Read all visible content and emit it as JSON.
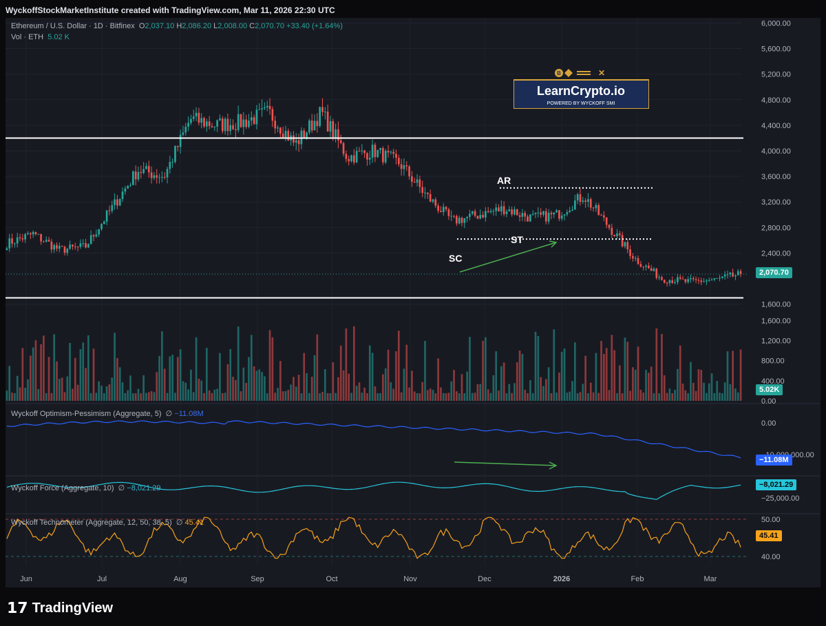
{
  "header": {
    "title": "WyckoffStockMarketInstitute created with TradingView.com, Mar 11, 2026 22:30 UTC"
  },
  "legend": {
    "symbol": "Ethereum / U.S. Dollar · 1D · Bitfinex",
    "o_label": "O",
    "o": "2,037.10",
    "h_label": "H",
    "h": "2,086.20",
    "l_label": "L",
    "l": "2,008.00",
    "c_label": "C",
    "c": "2,070.70",
    "change": "+33.40 (+1.64%)",
    "vol_label": "Vol · ETH",
    "vol": "5.02 K"
  },
  "indicators": {
    "op": {
      "label": "Wyckoff Optimism-Pessimism (Aggregate, 5)",
      "symbol": "∅",
      "value": "−11.08M"
    },
    "force": {
      "label": "Wyckoff Force (Aggregate, 10)",
      "symbol": "∅",
      "value": "−8,021.29"
    },
    "tech": {
      "label": "Wyckoff Technometer (Aggregate, 12, 50, 38, 5)",
      "symbol": "∅",
      "value": "45.41"
    }
  },
  "price_tags": {
    "price": "2,070.70",
    "vol": "5.02K",
    "op": "−11.08M",
    "force": "−8,021.29",
    "tech": "45.41"
  },
  "logo": {
    "title": "LearnCrypto.io",
    "subtitle": "POWERED BY WYCKOFF SMI"
  },
  "annotations": {
    "ar": "AR",
    "st": "ST",
    "sc": "SC"
  },
  "footer": {
    "brand": "TradingView"
  },
  "colors": {
    "up": "#26a69a",
    "down": "#ef5350",
    "op_line": "#2962ff",
    "force_line": "#26c6da",
    "tech_line": "#f7a21b"
  },
  "chart_data": [
    {
      "type": "candlestick",
      "title": "Ethereum / U.S. Dollar · 1D · Bitfinex",
      "price_axis": [
        "6,000.00",
        "5,600.00",
        "5,200.00",
        "4,800.00",
        "4,400.00",
        "4,000.00",
        "3,600.00",
        "3,200.00",
        "2,800.00",
        "2,400.00",
        "1,600.00"
      ],
      "price_axis_values": [
        6000,
        5600,
        5200,
        4800,
        4400,
        4000,
        3600,
        3200,
        2800,
        2400,
        1600
      ],
      "x_ticks": [
        "Jun",
        "Jul",
        "Aug",
        "Sep",
        "Oct",
        "Nov",
        "Dec",
        "2026",
        "Feb",
        "Mar"
      ],
      "ylim": [
        1500,
        6080
      ],
      "key_points": [
        {
          "date": "Jun",
          "close": 2550
        },
        {
          "date": "Jun mid",
          "close": 2700
        },
        {
          "date": "Jun end",
          "close": 2450
        },
        {
          "date": "Jul",
          "close": 2500
        },
        {
          "date": "Jul mid",
          "close": 3100
        },
        {
          "date": "Jul end",
          "close": 3700
        },
        {
          "date": "Aug",
          "close": 3600
        },
        {
          "date": "Aug mid",
          "close": 4500
        },
        {
          "date": "Aug end",
          "close": 4400
        },
        {
          "date": "Sep",
          "close": 4450
        },
        {
          "date": "Sep mid",
          "close": 4600
        },
        {
          "date": "Sep end",
          "close": 4100
        },
        {
          "date": "Oct",
          "close": 4600
        },
        {
          "date": "Oct mid",
          "close": 3900
        },
        {
          "date": "Oct end",
          "close": 4000
        },
        {
          "date": "Nov",
          "close": 3800
        },
        {
          "date": "Nov mid",
          "close": 3300
        },
        {
          "date": "Nov end",
          "close": 2900
        },
        {
          "date": "Dec",
          "close": 3000
        },
        {
          "date": "Dec mid",
          "close": 3100
        },
        {
          "date": "Dec end",
          "close": 2950
        },
        {
          "date": "2026",
          "close": 3000
        },
        {
          "date": "Jan mid",
          "close": 3300
        },
        {
          "date": "Jan end",
          "close": 2800
        },
        {
          "date": "Feb",
          "close": 2300
        },
        {
          "date": "Feb mid",
          "close": 2000
        },
        {
          "date": "Feb end",
          "close": 1950
        },
        {
          "date": "Mar",
          "close": 1980
        },
        {
          "date": "Mar 11",
          "close": 2070.7
        }
      ],
      "horizontal_levels": [
        4200,
        1700
      ],
      "dotted_levels": [
        {
          "label": "AR",
          "value": 3420
        },
        {
          "label": "ST",
          "value": 2620
        }
      ],
      "last_price": 2070.7
    },
    {
      "type": "bar",
      "title": "Vol · ETH",
      "y_axis": [
        "1,600.00",
        "1,200.00",
        "800.00",
        "400.00",
        "0.00"
      ],
      "y_axis_values": [
        1600,
        1200,
        800,
        400,
        0
      ],
      "last": 5.02
    },
    {
      "type": "line",
      "title": "Wyckoff Optimism-Pessimism (Aggregate, 5)",
      "y_axis": [
        "0.00",
        "−10,000,000.00"
      ],
      "y_axis_values": [
        0,
        -10000000
      ],
      "last": -11080000
    },
    {
      "type": "line",
      "title": "Wyckoff Force (Aggregate, 10)",
      "y_axis": [
        "−25,000.00"
      ],
      "y_axis_values": [
        -25000
      ],
      "last": -8021.29
    },
    {
      "type": "line",
      "title": "Wyckoff Technometer (Aggregate, 12, 50, 38, 5)",
      "y_axis": [
        "50.00",
        "40.00"
      ],
      "y_axis_values": [
        50,
        40
      ],
      "last": 45.41
    }
  ]
}
